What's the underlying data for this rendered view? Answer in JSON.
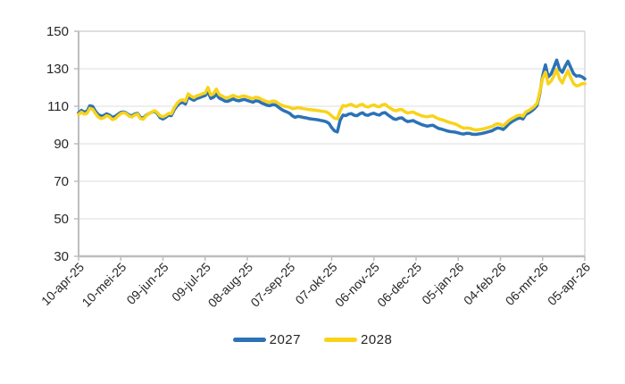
{
  "figure": {
    "background": "#ffffff",
    "text_color": "#262626"
  },
  "legend": {
    "position": "bottom",
    "items": [
      {
        "label": "2027",
        "color": "#2B72B7"
      },
      {
        "label": "2028",
        "color": "#F8D319"
      }
    ]
  },
  "chart_data": {
    "type": "line",
    "title": "",
    "xlabel": "",
    "ylabel": "",
    "ylim": [
      30,
      150
    ],
    "yticks": [
      150,
      130,
      110,
      90,
      70,
      50,
      30
    ],
    "grid": "horizontal",
    "legend_position": "bottom",
    "x_tick_labels": [
      "10-apr-25",
      "10-mei-25",
      "09-jun-25",
      "09-jul-25",
      "08-aug-25",
      "07-sep-25",
      "07-okt-25",
      "06-nov-25",
      "06-dec-25",
      "05-jan-26",
      "04-feb-26",
      "06-mrt-26",
      "05-apr-26"
    ],
    "x_tick_days": [
      0,
      30,
      60,
      90,
      120,
      150,
      180,
      210,
      240,
      270,
      300,
      330,
      360
    ],
    "x_day_start_label": "10-apr-25",
    "x_day_step": 2,
    "x_day_max": 360,
    "series": [
      {
        "name": "2027",
        "color": "#2B72B7",
        "values": [
          106.5,
          107.8,
          106.9,
          107.4,
          110.3,
          109.9,
          107.4,
          105.6,
          104.7,
          105.1,
          106.0,
          105.3,
          104.1,
          104.6,
          105.7,
          106.7,
          107.0,
          106.4,
          105.3,
          104.9,
          105.9,
          106.2,
          104.1,
          103.7,
          105.2,
          106.1,
          106.8,
          107.3,
          106.1,
          103.9,
          103.2,
          104.1,
          105.3,
          105.0,
          108.1,
          110.2,
          111.6,
          112.1,
          111.2,
          115.1,
          113.9,
          113.2,
          114.1,
          114.6,
          115.2,
          115.7,
          117.6,
          114.2,
          114.8,
          116.4,
          114.4,
          113.6,
          112.8,
          112.6,
          113.3,
          113.9,
          113.2,
          112.9,
          113.4,
          113.6,
          113.1,
          112.6,
          112.2,
          112.9,
          112.7,
          111.8,
          111.2,
          110.5,
          110.3,
          110.9,
          110.7,
          109.6,
          108.5,
          107.6,
          107.0,
          106.3,
          104.9,
          104.1,
          104.6,
          104.4,
          104.0,
          103.8,
          103.4,
          103.2,
          103.0,
          102.8,
          102.5,
          102.2,
          101.8,
          100.9,
          98.6,
          96.9,
          96.3,
          102.5,
          105.3,
          105.0,
          105.8,
          106.1,
          105.2,
          105.0,
          106.0,
          106.5,
          105.4,
          105.2,
          105.9,
          106.3,
          105.6,
          105.3,
          106.4,
          106.6,
          105.4,
          104.4,
          103.3,
          103.0,
          103.7,
          103.8,
          102.6,
          101.8,
          102.1,
          102.4,
          101.5,
          100.9,
          100.2,
          99.8,
          99.4,
          99.7,
          99.9,
          99.0,
          98.2,
          97.8,
          97.4,
          96.9,
          96.5,
          96.4,
          96.2,
          95.8,
          95.4,
          95.2,
          95.6,
          95.5,
          95.1,
          95.0,
          95.2,
          95.4,
          95.7,
          96.1,
          96.5,
          96.9,
          97.8,
          98.5,
          98.2,
          97.6,
          99.0,
          100.6,
          101.7,
          102.6,
          103.4,
          103.8,
          103.2,
          105.6,
          106.4,
          107.4,
          108.6,
          110.4,
          116.8,
          126.3,
          132.1,
          125.6,
          127.2,
          130.8,
          134.6,
          129.8,
          128.1,
          131.4,
          134.0,
          130.6,
          127.4,
          126.1,
          126.3,
          125.7,
          124.6
        ]
      },
      {
        "name": "2028",
        "color": "#F8D319",
        "values": [
          105.6,
          106.9,
          105.8,
          106.3,
          108.9,
          108.4,
          106.2,
          104.3,
          103.4,
          103.9,
          105.0,
          104.4,
          102.9,
          103.4,
          104.8,
          106.1,
          106.6,
          106.0,
          104.7,
          104.3,
          105.4,
          105.8,
          103.4,
          103.1,
          104.9,
          106.0,
          106.9,
          107.6,
          106.6,
          104.9,
          104.4,
          105.1,
          106.2,
          106.0,
          109.2,
          111.5,
          113.0,
          113.5,
          112.7,
          116.6,
          115.4,
          114.6,
          115.5,
          116.0,
          116.6,
          117.1,
          120.1,
          116.0,
          116.7,
          119.2,
          116.3,
          115.5,
          114.7,
          114.5,
          115.2,
          115.8,
          115.1,
          114.8,
          115.3,
          115.5,
          115.0,
          114.5,
          114.1,
          114.8,
          114.6,
          113.7,
          113.1,
          112.4,
          112.2,
          112.8,
          112.6,
          111.6,
          110.7,
          110.1,
          109.8,
          109.5,
          108.7,
          108.9,
          109.3,
          109.0,
          108.7,
          108.5,
          108.2,
          108.1,
          107.9,
          107.7,
          107.5,
          107.3,
          107.0,
          106.2,
          104.8,
          103.6,
          103.3,
          107.5,
          110.4,
          110.0,
          110.7,
          111.0,
          110.1,
          109.8,
          110.7,
          111.0,
          109.9,
          109.6,
          110.3,
          110.7,
          110.0,
          109.7,
          110.8,
          111.0,
          109.8,
          108.9,
          107.9,
          107.6,
          108.2,
          108.3,
          107.1,
          106.4,
          106.7,
          106.9,
          106.1,
          105.5,
          104.9,
          104.6,
          104.4,
          104.7,
          104.9,
          104.0,
          103.3,
          102.9,
          102.5,
          101.8,
          101.3,
          100.9,
          100.5,
          99.7,
          98.9,
          98.3,
          98.5,
          98.3,
          97.8,
          97.4,
          97.5,
          97.7,
          98.0,
          98.4,
          98.8,
          99.2,
          100.1,
          100.7,
          100.3,
          99.6,
          101.0,
          102.4,
          103.4,
          104.2,
          105.0,
          105.3,
          104.7,
          107.0,
          107.7,
          108.7,
          109.9,
          111.6,
          117.7,
          124.9,
          128.2,
          121.9,
          123.4,
          126.2,
          129.6,
          124.7,
          122.4,
          126.1,
          128.9,
          125.2,
          122.1,
          120.9,
          121.2,
          122.1,
          122.0
        ]
      }
    ]
  }
}
